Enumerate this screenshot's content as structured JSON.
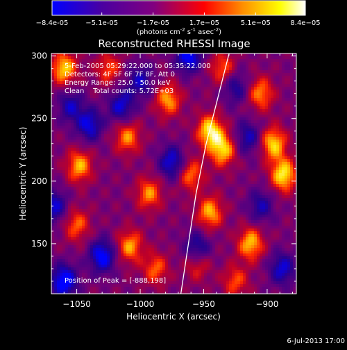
{
  "colorbar": {
    "tick_labels": [
      "-8.4e-05",
      "-5.1e-05",
      "-1.7e-05",
      "1.7e-05",
      "5.1e-05",
      "8.4e-05"
    ],
    "unit_base": "(photons cm",
    "unit_exp1": "-2",
    "unit_mid": " s",
    "unit_exp2": "-1",
    "unit_mid2": " asec",
    "unit_exp3": "-2",
    "unit_end": ")",
    "range": [
      -8.4e-05,
      8.4e-05
    ]
  },
  "annotations": {
    "time_range": "5-Feb-2005 05:29:22.000 to 05:35:22.000",
    "detectors": "Detectors: 4F 5F 6F 7F 8F, Att 0",
    "energy": "Energy Range: 25.0 - 50.0 keV",
    "clean": "Clean    Total counts: 5.72E+03",
    "peak": "Position of Peak = [-888,198]"
  },
  "footer_date": "6-Jul-2013 17:00",
  "chart_data": {
    "type": "heatmap",
    "title": "Reconstructed RHESSI Image",
    "xlabel": "Heliocentric X (arcsec)",
    "ylabel": "Heliocentric Y (arcsec)",
    "xlim": [
      -1070,
      -877
    ],
    "ylim": [
      110,
      302
    ],
    "x_ticks": [
      -1050,
      -1000,
      -950,
      -900
    ],
    "y_ticks": [
      150,
      200,
      250,
      300
    ],
    "x_tick_labels": [
      "−1050",
      "−1000",
      "−950",
      "−900"
    ],
    "y_tick_labels": [
      "150",
      "200",
      "250",
      "300"
    ],
    "colormap": "rhessi-fire",
    "colors": [
      "#0000ff",
      "#4b0082",
      "#800080",
      "#ff0000",
      "#ff8c00",
      "#ffff00",
      "#ffffff"
    ],
    "limb_curve": [
      [
        -968,
        110
      ],
      [
        -962,
        150
      ],
      [
        -956,
        190
      ],
      [
        -948,
        230
      ],
      [
        -940,
        262
      ],
      [
        -930,
        302
      ]
    ],
    "peak": [
      -888,
      198
    ],
    "bright_sources": [
      [
        -945,
        240,
        1.0
      ],
      [
        -935,
        225,
        0.9
      ],
      [
        -887,
        205,
        1.0
      ],
      [
        -895,
        230,
        0.9
      ],
      [
        -913,
        150,
        0.85
      ],
      [
        -945,
        175,
        0.8
      ],
      [
        -1008,
        148,
        0.75
      ],
      [
        -993,
        190,
        0.7
      ],
      [
        -978,
        265,
        0.75
      ],
      [
        -1010,
        235,
        0.7
      ],
      [
        -1048,
        212,
        0.8
      ],
      [
        -1060,
        290,
        0.9
      ],
      [
        -935,
        290,
        0.6
      ],
      [
        -1050,
        165,
        0.6
      ],
      [
        -955,
        135,
        0.65
      ],
      [
        -988,
        130,
        0.6
      ],
      [
        -905,
        270,
        0.7
      ],
      [
        -960,
        205,
        0.65
      ],
      [
        -1025,
        290,
        0.55
      ],
      [
        -925,
        120,
        0.55
      ]
    ],
    "dark_sources": [
      [
        -1060,
        120,
        -1.0
      ],
      [
        -1030,
        140,
        -0.9
      ],
      [
        -1015,
        260,
        -0.7
      ],
      [
        -1040,
        245,
        -0.75
      ],
      [
        -962,
        300,
        -0.9
      ],
      [
        -955,
        145,
        -0.8
      ],
      [
        -975,
        215,
        -0.75
      ],
      [
        -888,
        130,
        -0.7
      ],
      [
        -915,
        235,
        -0.6
      ],
      [
        -905,
        180,
        -0.55
      ],
      [
        -1068,
        180,
        -0.7
      ],
      [
        -1000,
        280,
        -0.6
      ],
      [
        -1055,
        260,
        -0.6
      ],
      [
        -925,
        275,
        -0.55
      ]
    ]
  }
}
